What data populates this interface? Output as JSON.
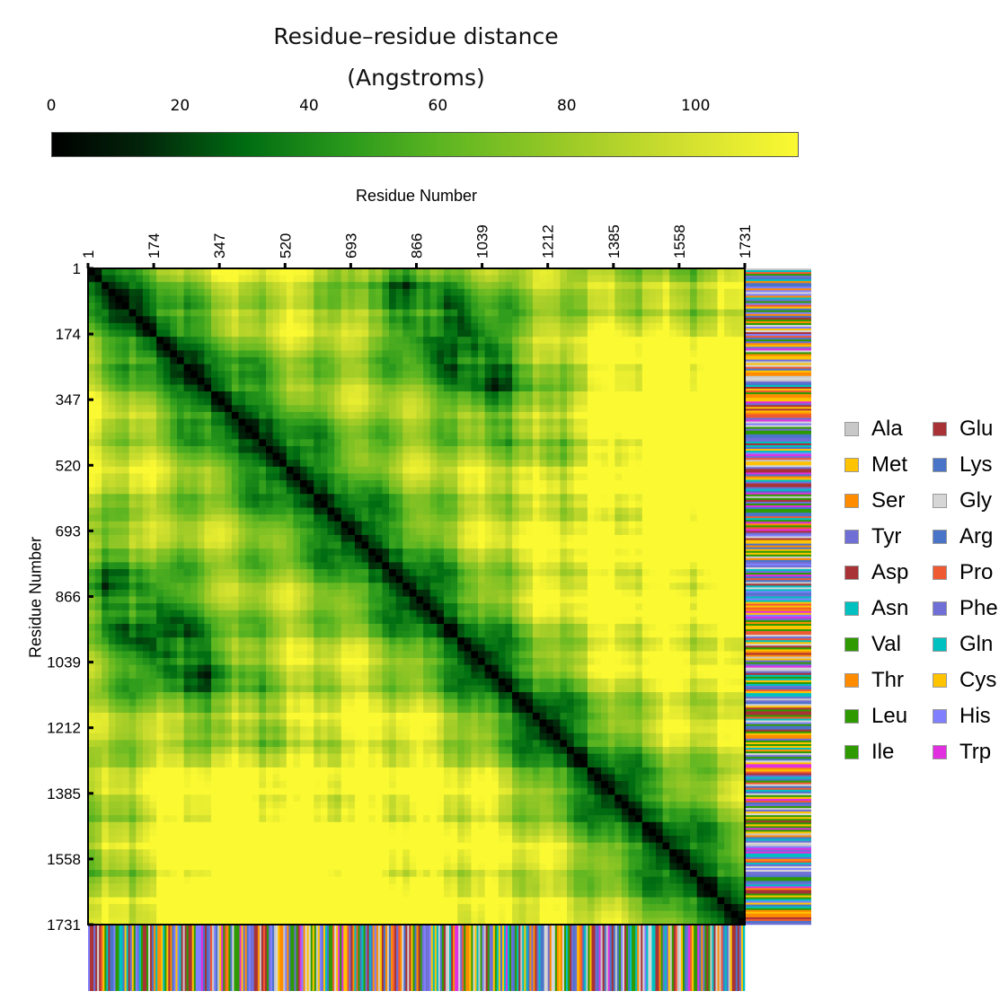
{
  "chart_data": {
    "type": "heatmap",
    "title": "Residue–residue distance",
    "subtitle": "(Angstroms)",
    "xlabel": "Residue Number",
    "ylabel": "Residue Number",
    "x_ticks": [
      "1",
      "174",
      "347",
      "520",
      "693",
      "866",
      "1039",
      "1212",
      "1385",
      "1558",
      "1731"
    ],
    "y_ticks": [
      "1",
      "174",
      "347",
      "520",
      "693",
      "866",
      "1039",
      "1212",
      "1385",
      "1558",
      "1731"
    ],
    "residue_range": [
      1,
      1731
    ],
    "colorbar": {
      "ticks": [
        "0",
        "20",
        "40",
        "60",
        "80",
        "100"
      ],
      "range": [
        0,
        116
      ],
      "colors": [
        "#000000",
        "#006d12",
        "#5cb521",
        "#b6d22a",
        "#fbf932"
      ]
    },
    "diagonal_value": 0,
    "legend_placement": "right",
    "legend": [
      {
        "label": "Ala",
        "color": "#c8c8c8"
      },
      {
        "label": "Met",
        "color": "#ffc300"
      },
      {
        "label": "Ser",
        "color": "#ff8c00"
      },
      {
        "label": "Tyr",
        "color": "#6f6fd6"
      },
      {
        "label": "Asp",
        "color": "#a83236"
      },
      {
        "label": "Asn",
        "color": "#00c0c0"
      },
      {
        "label": "Val",
        "color": "#2e9a00"
      },
      {
        "label": "Thr",
        "color": "#ff8c00"
      },
      {
        "label": "Leu",
        "color": "#2e9a00"
      },
      {
        "label": "Ile",
        "color": "#2e9a00"
      },
      {
        "label": "Glu",
        "color": "#a83236"
      },
      {
        "label": "Lys",
        "color": "#4a74c8"
      },
      {
        "label": "Gly",
        "color": "#d6d6d6"
      },
      {
        "label": "Arg",
        "color": "#4a74c8"
      },
      {
        "label": "Pro",
        "color": "#f05a32"
      },
      {
        "label": "Phe",
        "color": "#6f6fd6"
      },
      {
        "label": "Gln",
        "color": "#00c0c0"
      },
      {
        "label": "Cys",
        "color": "#ffc300"
      },
      {
        "label": "His",
        "color": "#8080ff"
      },
      {
        "label": "Trp",
        "color": "#e030e0"
      }
    ]
  }
}
